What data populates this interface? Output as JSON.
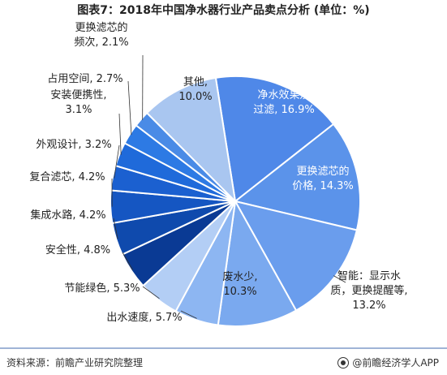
{
  "title": "图表7：2018年中国净水器行业产品卖点分析 (单位：%)",
  "footer": {
    "source": "资料来源：前瞻产业研究院整理",
    "brand": "@前瞻经济学人APP"
  },
  "colors": {
    "largest_slices": "#4f88e8",
    "light_slices": "#a9c6f0",
    "dark_blue": "#0b3d99",
    "leader_line": "#333333"
  },
  "chart_data": {
    "type": "pie",
    "title": "图表7：2018年中国净水器行业产品卖点分析 (单位：%)",
    "slices": [
      {
        "name": "净水效果及过滤",
        "value": 16.9,
        "label_lines": [
          "净水效果及",
          "过滤, 16.9%"
        ],
        "color": "#4f88e8",
        "label_inside": true
      },
      {
        "name": "更换滤芯的价格",
        "value": 14.3,
        "label_lines": [
          "更换滤芯的",
          "价格, 14.3%"
        ],
        "color": "#5b93ea",
        "label_inside": true
      },
      {
        "name": "智能：显示水质，更换提醒等",
        "value": 13.2,
        "label_lines": [
          "智能：显示水",
          "质，更换提醒等,",
          "13.2%"
        ],
        "color": "#6a9ded",
        "label_inside": false
      },
      {
        "name": "废水少",
        "value": 10.3,
        "label_lines": [
          "废水少,",
          "10.3%"
        ],
        "color": "#7aa9ef",
        "label_inside": true
      },
      {
        "name": "出水速度",
        "value": 5.7,
        "label_lines": [
          "出水速度, 5.7%"
        ],
        "color": "#8db6f2",
        "label_inside": false
      },
      {
        "name": "节能绿色",
        "value": 5.3,
        "label_lines": [
          "节能绿色, 5.3%"
        ],
        "color": "#b3cef5",
        "label_inside": false
      },
      {
        "name": "安全性",
        "value": 4.8,
        "label_lines": [
          "安全性, 4.8%"
        ],
        "color": "#0a3a94",
        "label_inside": false
      },
      {
        "name": "集成水路",
        "value": 4.2,
        "label_lines": [
          "集成水路, 4.2%"
        ],
        "color": "#0f4aad",
        "label_inside": false
      },
      {
        "name": "复合滤芯",
        "value": 4.2,
        "label_lines": [
          "复合滤芯, 4.2%"
        ],
        "color": "#1556c2",
        "label_inside": false
      },
      {
        "name": "外观设计",
        "value": 3.2,
        "label_lines": [
          "外观设计, 3.2%"
        ],
        "color": "#1b60d0",
        "label_inside": false
      },
      {
        "name": "安装便携性",
        "value": 3.1,
        "label_lines": [
          "安装便携性,",
          "3.1%"
        ],
        "color": "#1f6ada",
        "label_inside": false
      },
      {
        "name": "占用空间",
        "value": 2.7,
        "label_lines": [
          "占用空间, 2.7%"
        ],
        "color": "#2d7ae4",
        "label_inside": false
      },
      {
        "name": "更换滤芯的频次",
        "value": 2.1,
        "label_lines": [
          "更换滤芯的",
          "频次, 2.1%"
        ],
        "color": "#4a8be6",
        "label_inside": false
      },
      {
        "name": "其他",
        "value": 10.0,
        "label_lines": [
          "其他,",
          "10.0%"
        ],
        "color": "#a9c6f0",
        "label_inside": true
      }
    ]
  }
}
